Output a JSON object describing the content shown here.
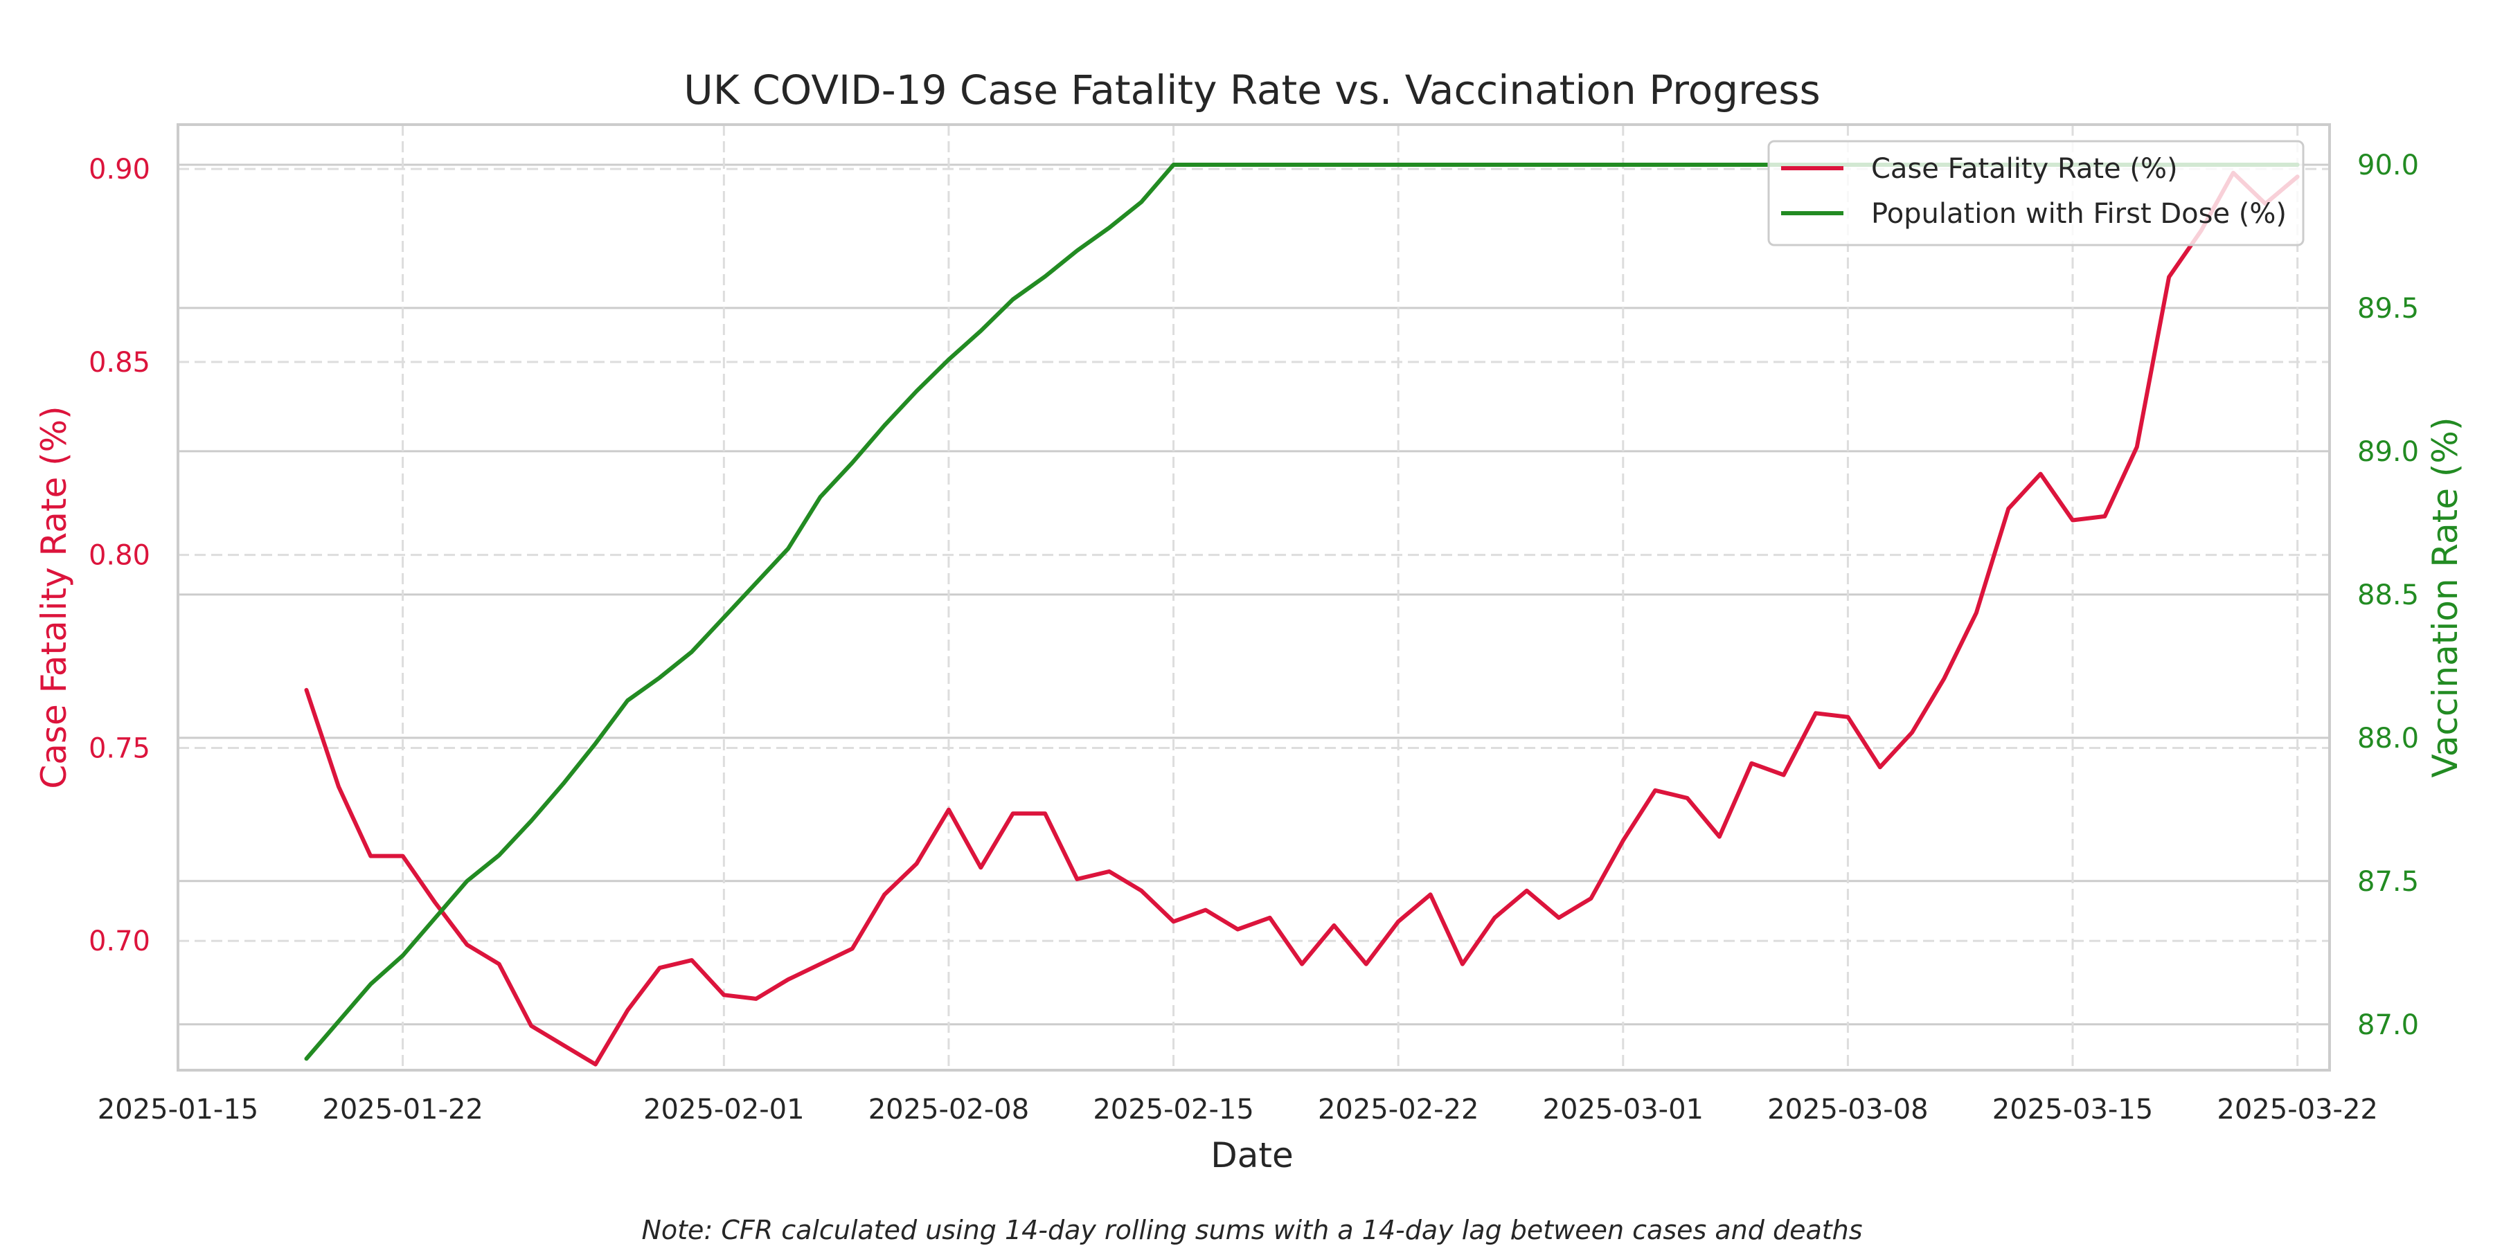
{
  "chart_data": {
    "type": "line",
    "title": "UK COVID-19 Case Fatality Rate vs. Vaccination Progress",
    "xlabel": "Date",
    "x_axis": {
      "range": [
        "2025-01-15",
        "2025-03-23"
      ],
      "ticks": [
        "2025-01-15",
        "2025-01-22",
        "2025-02-01",
        "2025-02-08",
        "2025-02-15",
        "2025-02-22",
        "2025-03-01",
        "2025-03-08",
        "2025-03-15",
        "2025-03-22"
      ]
    },
    "y_left": {
      "label": "Case Fatality Rate (%)",
      "color": "#dc143c",
      "range": [
        0.6665,
        0.9115
      ],
      "ticks": [
        "0.70",
        "0.75",
        "0.80",
        "0.85",
        "0.90"
      ],
      "grid": true
    },
    "y_right": {
      "label": "Vaccination Rate (%)",
      "color": "#228b22",
      "range": [
        86.84,
        90.14
      ],
      "ticks": [
        "87.0",
        "87.5",
        "88.0",
        "88.5",
        "89.0",
        "89.5",
        "90.0"
      ],
      "grid": true
    },
    "grid": true,
    "legend": {
      "position": "top-right",
      "entries": [
        "Case Fatality Rate (%)",
        "Population with First Dose (%)"
      ]
    },
    "series": [
      {
        "name": "Case Fatality Rate (%)",
        "axis": "left",
        "color": "#dc143c",
        "start_date": "2025-01-19",
        "values": [
          0.765,
          0.74,
          0.722,
          0.722,
          0.71,
          0.699,
          0.694,
          0.678,
          0.673,
          0.668,
          0.682,
          0.693,
          0.695,
          0.686,
          0.685,
          0.69,
          0.694,
          0.698,
          0.712,
          0.72,
          0.734,
          0.719,
          0.733,
          0.733,
          0.716,
          0.718,
          0.713,
          0.705,
          0.708,
          0.703,
          0.706,
          0.694,
          0.704,
          0.694,
          0.705,
          0.712,
          0.694,
          0.706,
          0.713,
          0.706,
          0.711,
          0.726,
          0.739,
          0.737,
          0.727,
          0.746,
          0.743,
          0.759,
          0.758,
          0.745,
          0.754,
          0.768,
          0.785,
          0.812,
          0.821,
          0.809,
          0.81,
          0.828,
          0.872,
          0.884,
          0.899,
          0.891,
          0.898
        ]
      },
      {
        "name": "Population with First Dose (%)",
        "axis": "right",
        "color": "#228b22",
        "start_date": "2025-01-19",
        "values": [
          86.88,
          87.01,
          87.14,
          87.24,
          87.37,
          87.5,
          87.59,
          87.71,
          87.84,
          87.98,
          88.13,
          88.21,
          88.3,
          88.42,
          88.54,
          88.66,
          88.84,
          88.96,
          89.09,
          89.21,
          89.32,
          89.42,
          89.53,
          89.61,
          89.7,
          89.78,
          89.87,
          90.0,
          90.0,
          90.0,
          90.0,
          90.0,
          90.0,
          90.0,
          90.0,
          90.0,
          90.0,
          90.0,
          90.0,
          90.0,
          90.0,
          90.0,
          90.0,
          90.0,
          90.0,
          90.0,
          90.0,
          90.0,
          90.0,
          90.0,
          90.0,
          90.0,
          90.0,
          90.0,
          90.0,
          90.0,
          90.0,
          90.0,
          90.0,
          90.0,
          90.0,
          90.0,
          90.0
        ]
      }
    ],
    "note": "Note: CFR calculated using 14-day rolling sums with a 14-day lag between cases and deaths"
  }
}
